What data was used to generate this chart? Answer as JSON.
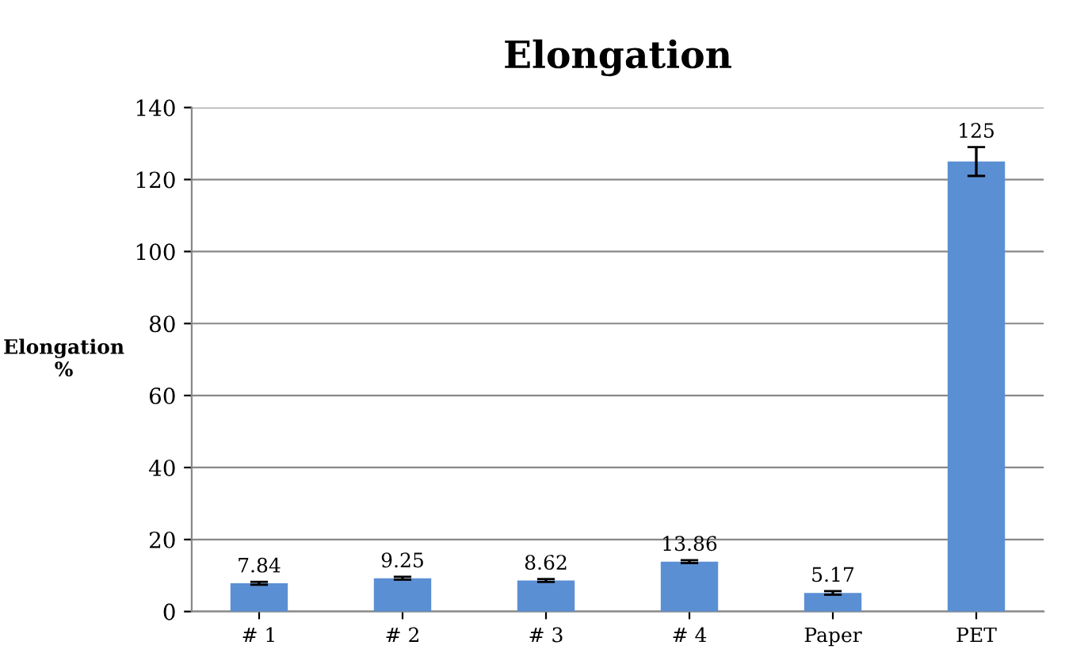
{
  "chart_data": {
    "type": "bar",
    "title": "Elongation",
    "ylabel": "Elongation\n%",
    "categories": [
      "# 1",
      "# 2",
      "# 3",
      "# 4",
      "Paper",
      "PET"
    ],
    "values": [
      7.84,
      9.25,
      8.62,
      13.86,
      5.17,
      125
    ],
    "errors": [
      0.4,
      0.4,
      0.4,
      0.4,
      0.5,
      4
    ],
    "color": "#5b8fd4",
    "ylim": [
      0,
      140
    ],
    "yticks": [
      0,
      20,
      40,
      60,
      80,
      100,
      120,
      140
    ],
    "grid": "y",
    "data_labels": true
  }
}
